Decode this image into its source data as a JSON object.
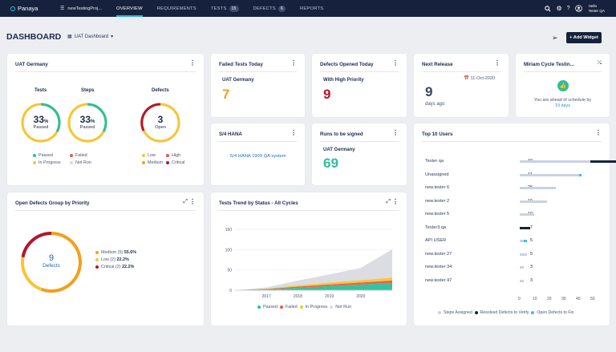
{
  "nav": {
    "logo": "Panaya",
    "project": "newTestingProj...",
    "tabs": [
      {
        "label": "OVERVIEW"
      },
      {
        "label": "REQUIREMENTS"
      },
      {
        "label": "TESTS",
        "count": "15"
      },
      {
        "label": "DEFECTS",
        "count": "6"
      },
      {
        "label": "REPORTS"
      }
    ],
    "user_greeting": "Hello",
    "user_name": "Tester QA"
  },
  "header": {
    "title": "DASHBOARD",
    "dashboard_select": "UAT Dashboard",
    "add_widget": "+ Add Widget"
  },
  "uat": {
    "title": "UAT Germany",
    "tests_label": "Tests",
    "steps_label": "Steps",
    "defects_label": "Defects",
    "tests_pct": "33",
    "tests_pct_unit": "%",
    "tests_sub": "Passed",
    "tests_fraction": 0.33,
    "steps_pct": "33",
    "steps_pct_unit": "%",
    "steps_sub": "Passed",
    "steps_fraction": 0.33,
    "defects_count": "3",
    "defects_sub": "Open",
    "legend_tests": [
      "Passed",
      "Failed",
      "In Progress",
      "Not Run"
    ],
    "legend_defects": [
      "Low",
      "High",
      "Medium",
      "Critical"
    ]
  },
  "failed": {
    "title": "Failed Tests Today",
    "sub": "UAT Germany",
    "value": "7"
  },
  "opened": {
    "title": "Defects Opened Today",
    "sub": "With High Priority",
    "value": "9"
  },
  "release": {
    "title": "Next Release",
    "date": "11-Oct-2020",
    "days": "9",
    "days_label": "days ago"
  },
  "miriam": {
    "title": "Miriam Cycle Testin...",
    "text": "You are ahead of schedule by",
    "days": "19 days"
  },
  "s4": {
    "title": "S/4 HANA",
    "link": "S/4 HANA 1909 QA system"
  },
  "runs": {
    "title": "Runs to be signed",
    "sub": "UAT Germany",
    "value": "69"
  },
  "topusers": {
    "title": "Top 10 Users",
    "axis": [
      "0",
      "10",
      "20",
      "30",
      "40",
      "50"
    ],
    "legend": [
      "Steps Assigned",
      "Resolved Defects to Verify",
      "Open Defects to Fix"
    ],
    "users": [
      {
        "name": "Tester qa",
        "value": "49",
        "steps": 49,
        "resolved": 30,
        "open": 0
      },
      {
        "name": "Unassigned",
        "value": "41",
        "steps": 41,
        "resolved": 0,
        "open": 2
      },
      {
        "name": "new.tester 6",
        "value": "25",
        "steps": 25,
        "resolved": 0,
        "open": 0
      },
      {
        "name": "new.tester 2",
        "value": "19",
        "steps": 19,
        "resolved": 0,
        "open": 0
      },
      {
        "name": "new.tester 5",
        "value": "10",
        "steps": 10,
        "resolved": 0,
        "open": 0
      },
      {
        "name": "Tester3 qa",
        "value": "7",
        "steps": 0,
        "resolved": 7,
        "open": 0
      },
      {
        "name": "API USER",
        "value": "5",
        "steps": 3,
        "resolved": 0,
        "open": 2
      },
      {
        "name": "new.tester 27",
        "value": "5",
        "steps": 5,
        "resolved": 0,
        "open": 0
      },
      {
        "name": "new.tester 34",
        "value": "3",
        "steps": 3,
        "resolved": 0,
        "open": 0
      },
      {
        "name": "new.tester 47",
        "value": "3",
        "steps": 3,
        "resolved": 0,
        "open": 0
      }
    ]
  },
  "priority": {
    "title": "Open Defects Group by Priority",
    "count": "9",
    "label": "Defects",
    "items": [
      {
        "label": "Medium (5)",
        "pct": "55.6%",
        "fraction": 0.556,
        "color": "#f59e1b"
      },
      {
        "label": "Low (2)",
        "pct": "22.2%",
        "fraction": 0.222,
        "color": "#f7c533"
      },
      {
        "label": "Critical (2)",
        "pct": "22.2%",
        "fraction": 0.222,
        "color": "#b5162b"
      }
    ]
  },
  "colors": {
    "passed": "#2bbf9c",
    "failed": "#e8574a",
    "in_progress": "#f7c533",
    "not_run": "#d9dbe0",
    "critical": "#b5162b",
    "medium": "#f59e1b",
    "navy": "#16223d",
    "bar_steps": "#c9d1e6",
    "bar_open": "#39c1e0"
  },
  "trend": {
    "title": "Tests Trend by Status - All Cycles",
    "legend": [
      "Passed",
      "Failed",
      "In Progress",
      "Not Run"
    ]
  },
  "chart_data": {
    "type": "area",
    "title": "Tests Trend by Status - All Cycles",
    "x": [
      "2016",
      "2017",
      "2018",
      "2019",
      "2020",
      "2020.5"
    ],
    "x_tick_labels": [
      "2017",
      "2018",
      "2019",
      "2020"
    ],
    "ylim": [
      0,
      150
    ],
    "y_ticks": [
      "0",
      "50",
      "100",
      "150"
    ],
    "series": [
      {
        "name": "Passed",
        "values": [
          0,
          2,
          6,
          10,
          14,
          18
        ]
      },
      {
        "name": "Failed",
        "values": [
          0,
          1,
          3,
          4,
          5,
          6
        ]
      },
      {
        "name": "In Progress",
        "values": [
          0,
          1,
          3,
          5,
          6,
          7
        ]
      },
      {
        "name": "Not Run",
        "values": [
          0,
          3,
          12,
          20,
          30,
          70
        ]
      }
    ],
    "grid": true,
    "legend_position": "bottom"
  }
}
